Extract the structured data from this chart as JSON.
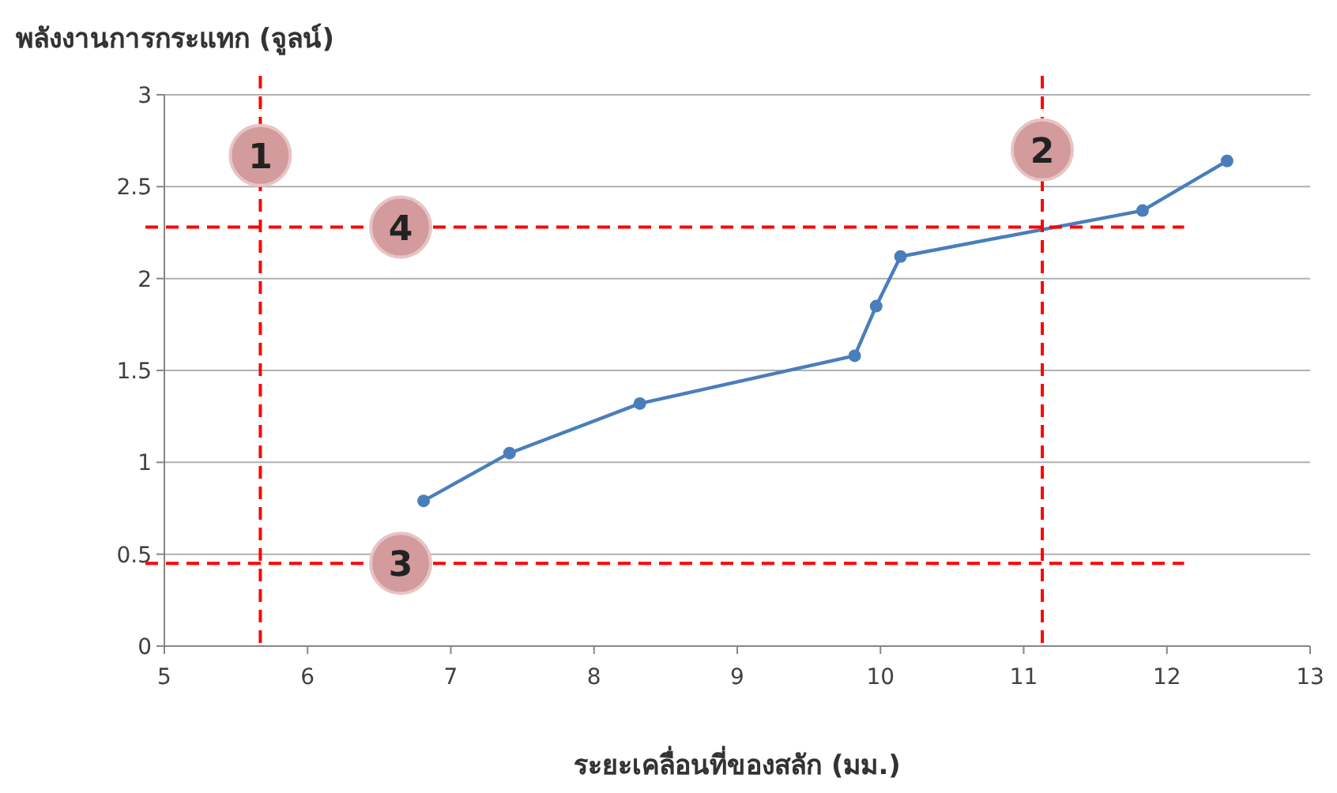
{
  "chart_data": {
    "type": "line",
    "ylabel": "พลังงานการกระแทก (จูลน์)",
    "xlabel": "ระยะเคลื่อนที่ของสลัก (มม.)",
    "series": [
      {
        "color": "#4a7ebb",
        "x": [
          6.81,
          7.41,
          8.32,
          9.82,
          9.97,
          10.14,
          11.83,
          12.42
        ],
        "values": [
          0.79,
          1.05,
          1.32,
          1.58,
          1.85,
          2.12,
          2.37,
          2.64
        ]
      }
    ],
    "xlim": [
      5,
      13
    ],
    "xticks": [
      5,
      6,
      7,
      8,
      9,
      10,
      11,
      12,
      13
    ],
    "ylim": [
      0,
      3
    ],
    "yticks": [
      0,
      0.5,
      1,
      1.5,
      2,
      2.5,
      3
    ],
    "grid": "y",
    "marker": "circle",
    "line_style": "solid",
    "ref_lines": [
      {
        "axis": "x",
        "value": 5.67,
        "color": "#ff0000",
        "line_style": "dashed"
      },
      {
        "axis": "x",
        "value": 11.13,
        "color": "#ff0000",
        "line_style": "dashed"
      },
      {
        "axis": "y",
        "value": 0.45,
        "color": "#ff0000",
        "line_style": "dashed"
      },
      {
        "axis": "y",
        "value": 2.28,
        "color": "#ff0000",
        "line_style": "dashed"
      }
    ],
    "annotations": [
      {
        "text": "1",
        "x": 5.67,
        "y": 2.67
      },
      {
        "text": "2",
        "x": 11.13,
        "y": 2.7
      },
      {
        "text": "3",
        "x": 6.65,
        "y": 0.45
      },
      {
        "text": "4",
        "x": 6.65,
        "y": 2.28
      }
    ]
  }
}
